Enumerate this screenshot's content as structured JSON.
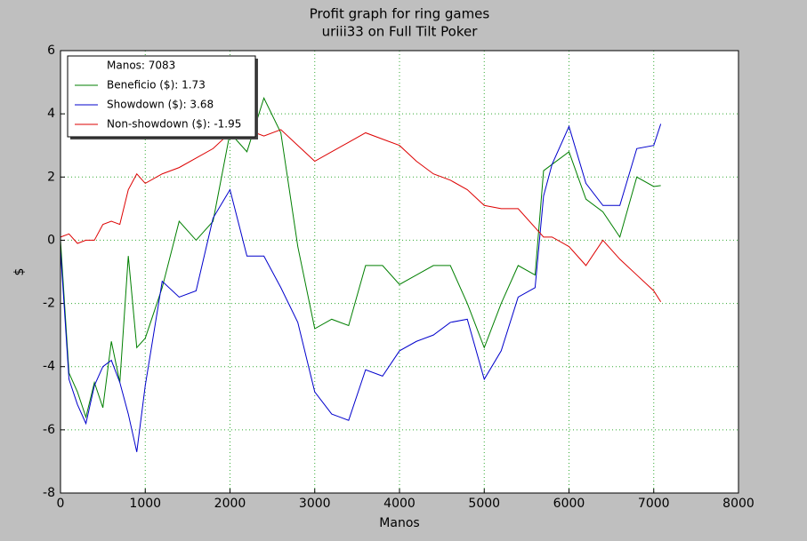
{
  "chart_data": {
    "type": "line",
    "title": "Profit graph for ring games",
    "subtitle": "uriii33 on Full Tilt Poker",
    "x_label": "Manos",
    "y_label": "$",
    "legend_title": "Manos: 7083",
    "legend": "upper left",
    "grid": true,
    "x": [
      0,
      100,
      200,
      300,
      400,
      500,
      600,
      700,
      800,
      900,
      1000,
      1200,
      1400,
      1600,
      1800,
      2000,
      2200,
      2400,
      2600,
      2800,
      3000,
      3200,
      3400,
      3600,
      3800,
      4000,
      4200,
      4400,
      4600,
      4800,
      5000,
      5200,
      5400,
      5600,
      5700,
      5800,
      6000,
      6200,
      6400,
      6600,
      6800,
      7000,
      7083
    ],
    "series": [
      {
        "name": "Beneficio ($): 1.73",
        "color": "#007f00",
        "values": [
          0,
          -4.2,
          -4.8,
          -5.6,
          -4.5,
          -5.3,
          -3.2,
          -4.5,
          -0.5,
          -3.4,
          -3.1,
          -1.5,
          0.6,
          0,
          0.6,
          3.4,
          2.8,
          4.5,
          3.4,
          -0.2,
          -2.8,
          -2.5,
          -2.7,
          -0.8,
          -0.8,
          -1.4,
          -1.1,
          -0.8,
          -0.8,
          -2.0,
          -3.4,
          -2.0,
          -0.8,
          -1.1,
          2.2,
          2.4,
          2.8,
          1.3,
          0.9,
          0.1,
          2.0,
          1.7,
          1.73
        ]
      },
      {
        "name": "Showdown ($): 3.68",
        "color": "#0000cc",
        "values": [
          -0.3,
          -4.4,
          -5.2,
          -5.8,
          -4.6,
          -4.0,
          -3.8,
          -4.5,
          -5.5,
          -6.7,
          -4.6,
          -1.3,
          -1.8,
          -1.6,
          0.7,
          1.6,
          -0.5,
          -0.5,
          -1.5,
          -2.6,
          -4.8,
          -5.5,
          -5.7,
          -4.1,
          -4.3,
          -3.5,
          -3.2,
          -3.0,
          -2.6,
          -2.5,
          -4.4,
          -3.5,
          -1.8,
          -1.5,
          1.4,
          2.4,
          3.6,
          1.8,
          1.1,
          1.1,
          2.9,
          3.0,
          3.68
        ]
      },
      {
        "name": "Non-showdown ($): -1.95",
        "color": "#dd0000",
        "values": [
          0.1,
          0.2,
          -0.1,
          0,
          0,
          0.5,
          0.6,
          0.5,
          1.6,
          2.1,
          1.8,
          2.1,
          2.3,
          2.6,
          2.9,
          3.4,
          3.5,
          3.3,
          3.5,
          3.0,
          2.5,
          2.8,
          3.1,
          3.4,
          3.2,
          3.0,
          2.5,
          2.1,
          1.9,
          1.6,
          1.1,
          1.0,
          1.0,
          0.4,
          0.1,
          0.1,
          -0.2,
          -0.8,
          0,
          -0.6,
          -1.1,
          -1.6,
          -1.95
        ]
      }
    ],
    "xlim": [
      0,
      8000
    ],
    "xticks": [
      0,
      1000,
      2000,
      3000,
      4000,
      5000,
      6000,
      7000,
      8000
    ],
    "ylim": [
      -8,
      6
    ],
    "yticks": [
      -8,
      -6,
      -4,
      -2,
      0,
      2,
      4,
      6
    ]
  }
}
